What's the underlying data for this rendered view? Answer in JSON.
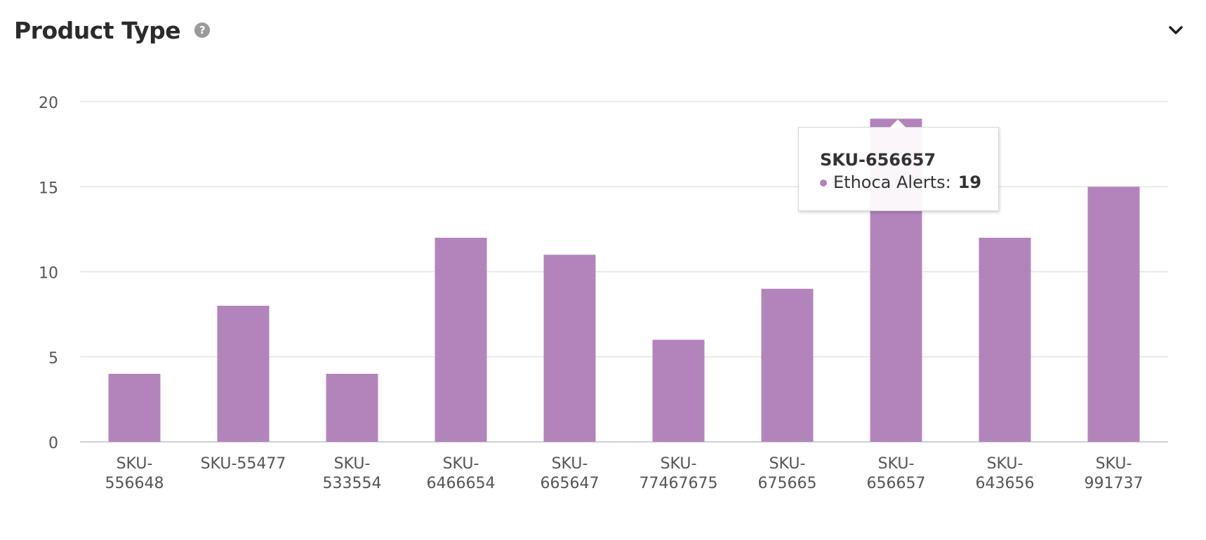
{
  "header": {
    "title": "Product Type",
    "help_icon": "question-mark-icon",
    "collapse_icon": "chevron-down-icon"
  },
  "colors": {
    "bar": "#b384bb",
    "grid": "#e4e4e4",
    "axis_text": "#555555",
    "title": "#2b2b2b"
  },
  "chart_data": {
    "type": "bar",
    "title": "Product Type",
    "xlabel": "",
    "ylabel": "",
    "ylim": [
      0,
      20
    ],
    "yticks": [
      0,
      5,
      10,
      15,
      20
    ],
    "grid": true,
    "categories": [
      "SKU-556648",
      "SKU-55477",
      "SKU-533554",
      "SKU-6466654",
      "SKU-665647",
      "SKU-77467675",
      "SKU-675665",
      "SKU-656657",
      "SKU-643656",
      "SKU-991737"
    ],
    "series": [
      {
        "name": "Ethoca Alerts",
        "color": "#b384bb",
        "values": [
          4,
          8,
          4,
          12,
          11,
          6,
          9,
          19,
          12,
          15
        ]
      }
    ]
  },
  "tooltip": {
    "sku": "SKU-656657",
    "series_label": "Ethoca Alerts:",
    "value": "19"
  }
}
